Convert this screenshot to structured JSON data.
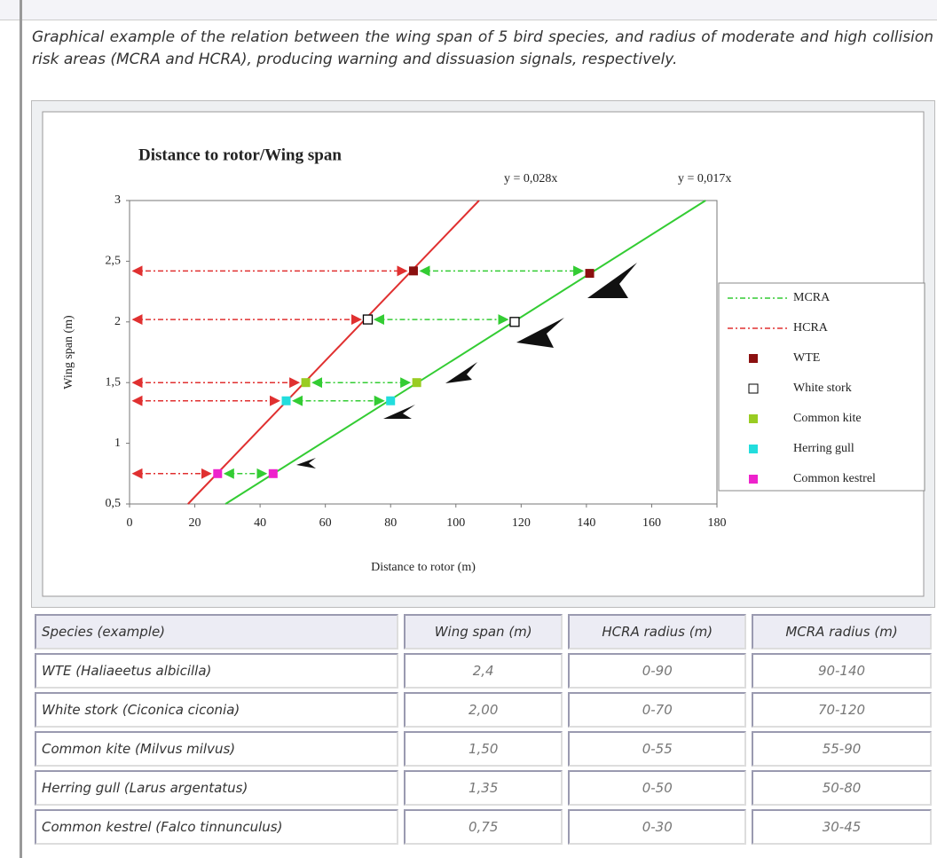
{
  "caption": "Graphical example of the relation between the wing span of 5 bird species, and radius of moderate and high collision risk areas (MCRA and HCRA), producing warning and dissuasion signals, respectively.",
  "chart_data": {
    "type": "scatter",
    "title": "Distance to rotor/Wing span",
    "x_label": "Distance to rotor (m)",
    "y_label": "Wing span (m)",
    "annotations": [
      "y = 0,028x",
      "y = 0,017x"
    ],
    "xlim": [
      0,
      180
    ],
    "xticks": [
      0,
      20,
      40,
      60,
      80,
      100,
      120,
      140,
      160,
      180
    ],
    "ylim": [
      0.5,
      3
    ],
    "yticks": [
      {
        "value": 0.5,
        "label": "0,5"
      },
      1,
      {
        "value": 1.5,
        "label": "1,5"
      },
      2,
      {
        "value": 2.5,
        "label": "2,5"
      },
      3
    ],
    "grid": false,
    "legend": "right",
    "series": [
      {
        "name": "MCRA",
        "color": "#33cc33",
        "mode": "line",
        "x": [
          29.4,
          176.5
        ],
        "y": [
          0.5,
          3
        ]
      },
      {
        "name": "HCRA",
        "color": "#e03030",
        "mode": "line",
        "x": [
          17.9,
          107.1
        ],
        "y": [
          0.5,
          3
        ]
      },
      {
        "name": "WTE",
        "color": "#8b1010",
        "mode": "marker",
        "x": [
          87,
          141
        ],
        "y": [
          2.42,
          2.4
        ]
      },
      {
        "name": "White stork",
        "color": "#000000",
        "mode": "marker",
        "hollow": true,
        "x": [
          73,
          118
        ],
        "y": [
          2.02,
          2.0
        ]
      },
      {
        "name": "Common kite",
        "color": "#99cc22",
        "mode": "marker",
        "x": [
          54,
          88
        ],
        "y": [
          1.5,
          1.5
        ]
      },
      {
        "name": "Herring gull",
        "color": "#22dddd",
        "mode": "marker",
        "x": [
          48,
          80
        ],
        "y": [
          1.35,
          1.35
        ]
      },
      {
        "name": "Common kestrel",
        "color": "#ee22cc",
        "mode": "marker",
        "x": [
          27,
          44
        ],
        "y": [
          0.75,
          0.75
        ]
      }
    ]
  },
  "table": {
    "header": [
      "Species (example)",
      "Wing span (m)",
      "HCRA radius (m)",
      "MCRA radius (m)"
    ],
    "rows": [
      [
        "WTE (Haliaeetus albicilla)",
        "2,4",
        "0-90",
        "90-140"
      ],
      [
        "White stork (Ciconica ciconia)",
        "2,00",
        "0-70",
        "70-120"
      ],
      [
        "Common kite (Milvus milvus)",
        "1,50",
        "0-55",
        "55-90"
      ],
      [
        "Herring gull (Larus argentatus)",
        "1,35",
        "0-50",
        "50-80"
      ],
      [
        "Common kestrel (Falco tinnunculus)",
        "0,75",
        "0-30",
        "30-45"
      ]
    ]
  }
}
